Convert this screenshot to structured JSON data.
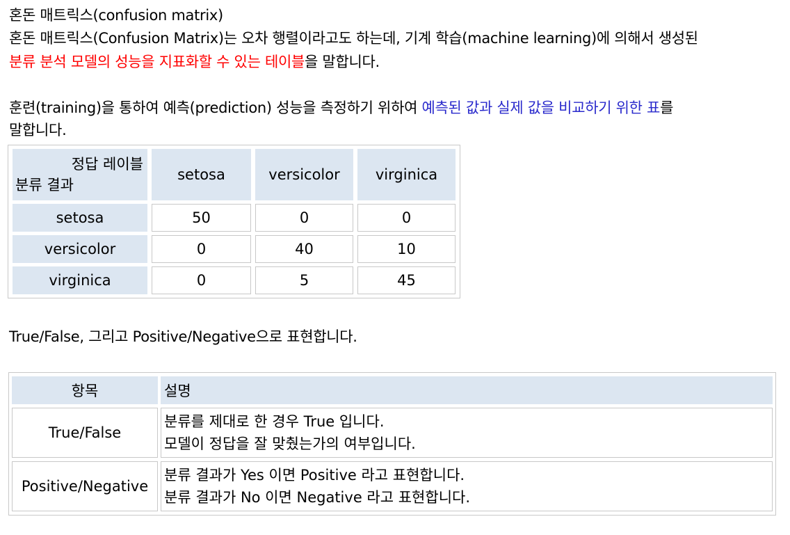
{
  "heading": "혼돈 매트릭스(confusion matrix)",
  "para1_line1": "혼돈 매트릭스(Confusion Matrix)는 오차 행렬이라고도 하는데, 기계 학습(machine learning)에 의해서 생성된",
  "para1_line2_red": "분류 분석 모델의 성능을 지표화할 수 있는 테이블",
  "para1_line2_tail": "을 말합니다.",
  "para2_line1_start": "훈련(training)을 통하여 예측(prediction) 성능을 측정하기 위하여 ",
  "para2_line1_blue": "예측된 값과 실제 값을 비교하기 위한 표",
  "para2_line1_end": "를",
  "para2_line2": "말합니다.",
  "confusion_table": {
    "corner_top": "정답 레이블",
    "corner_bottom": "분류 결과",
    "columns": [
      "setosa",
      "versicolor",
      "virginica"
    ],
    "rows": [
      {
        "label": "setosa",
        "values": [
          "50",
          "0",
          "0"
        ]
      },
      {
        "label": "versicolor",
        "values": [
          "0",
          "40",
          "10"
        ]
      },
      {
        "label": "virginica",
        "values": [
          "0",
          "5",
          "45"
        ]
      }
    ]
  },
  "para3": "True/False, 그리고 Positive/Negative으로 표현합니다.",
  "desc_table": {
    "header_item": "항목",
    "header_desc": "설명",
    "rows": [
      {
        "item": "True/False",
        "line1": "분류를 제대로 한 경우 True 입니다.",
        "line2": "모델이 정답을 잘 맞췄는가의 여부입니다."
      },
      {
        "item": "Positive/Negative",
        "line1": "분류 결과가 Yes 이면 Positive 라고 표현합니다.",
        "line2": "분류 결과가 No 이면 Negative 라고 표현합니다."
      }
    ]
  }
}
